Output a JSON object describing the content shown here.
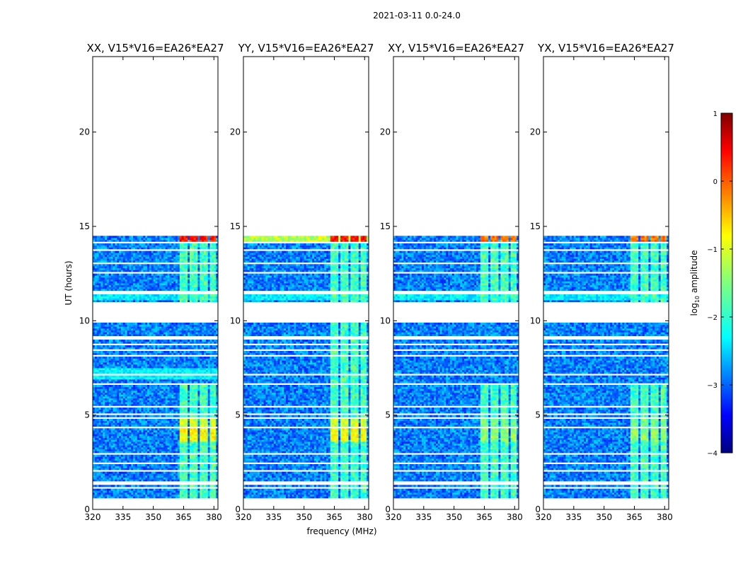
{
  "figure": {
    "suptitle": "2021-03-11 0.0-24.0",
    "xlabel": "frequency (MHz)",
    "ylabel": "UT (hours)"
  },
  "chart_data": {
    "type": "heatmap",
    "colormap": "jet",
    "x_range": [
      320,
      382
    ],
    "y_range": [
      0,
      24
    ],
    "x_ticks": [
      320,
      335,
      350,
      365,
      380
    ],
    "y_ticks": [
      0,
      5,
      10,
      15,
      20
    ],
    "data_time_range_hours": [
      0.6,
      14.4
    ],
    "data_freq_range_mhz": [
      320,
      382
    ],
    "colorbar": {
      "label": "log",
      "label_sub": "10",
      "label_rest": " amplitude",
      "range": [
        -4,
        1
      ],
      "ticks": [
        1,
        0,
        -1,
        -2,
        -3,
        -4
      ]
    },
    "panels": [
      {
        "title": "XX, V15*V16=EA26*EA27",
        "pol": "XX"
      },
      {
        "title": "YY, V15*V16=EA26*EA27",
        "pol": "YY"
      },
      {
        "title": "XY, V15*V16=EA26*EA27",
        "pol": "XY"
      },
      {
        "title": "YX, V15*V16=EA26*EA27",
        "pol": "YX"
      }
    ],
    "flagged_gaps_hours": [
      [
        1.3,
        1.5
      ],
      [
        0.9,
        0.95
      ],
      [
        1.05,
        1.1
      ],
      [
        2.0,
        2.05
      ],
      [
        2.4,
        2.45
      ],
      [
        2.65,
        2.7
      ],
      [
        2.9,
        2.95
      ],
      [
        3.45,
        3.5
      ],
      [
        4.3,
        4.4
      ],
      [
        4.7,
        4.8
      ],
      [
        4.95,
        5.05
      ],
      [
        5.35,
        5.4
      ],
      [
        5.7,
        5.75
      ],
      [
        6.0,
        6.05
      ],
      [
        6.3,
        6.35
      ],
      [
        6.55,
        6.6
      ],
      [
        7.0,
        7.1
      ],
      [
        8.05,
        8.1
      ],
      [
        8.35,
        8.4
      ],
      [
        8.65,
        8.7
      ],
      [
        8.95,
        9.1
      ],
      [
        9.85,
        10.95
      ],
      [
        11.35,
        11.55
      ],
      [
        12.0,
        12.05
      ],
      [
        12.4,
        12.55
      ],
      [
        12.95,
        13.0
      ],
      [
        13.3,
        13.35
      ],
      [
        13.65,
        13.7
      ],
      [
        14.05,
        14.1
      ]
    ],
    "bright_channel_bands_mhz": [
      [
        362.5,
        366.5
      ],
      [
        367.5,
        371.5
      ],
      [
        373,
        376.5
      ],
      [
        378,
        381
      ]
    ],
    "high_amplitude_times_hours": [
      {
        "t0": 14.0,
        "t1": 14.4,
        "level": 0.3
      },
      {
        "t0": 3.6,
        "t1": 4.3,
        "level": -0.9
      },
      {
        "t0": 4.4,
        "t1": 4.7,
        "level": -1.1
      }
    ]
  }
}
